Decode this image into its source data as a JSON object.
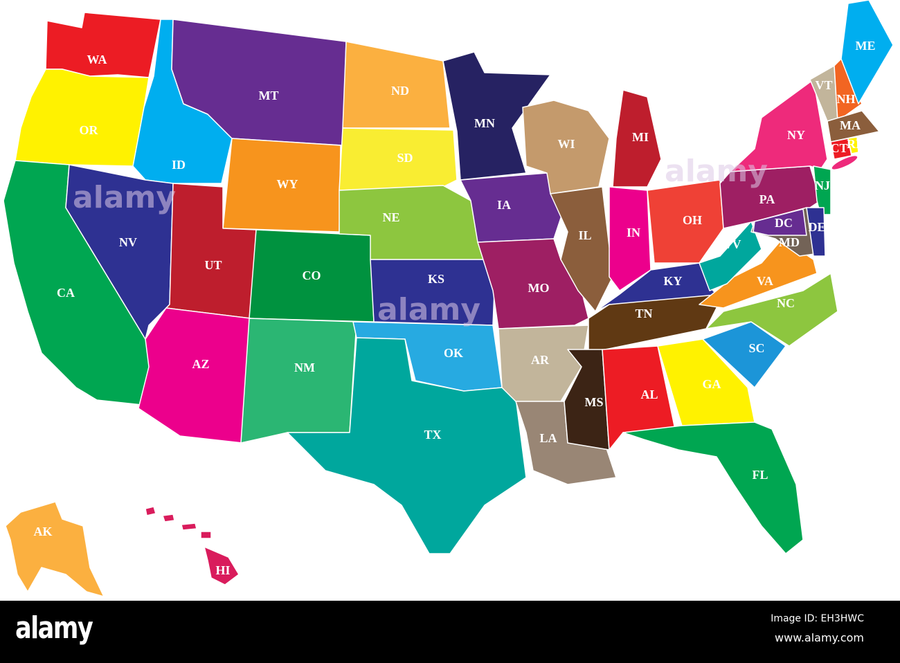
{
  "map": {
    "states": [
      {
        "code": "WA",
        "color": "#ec1c24"
      },
      {
        "code": "OR",
        "color": "#fff200"
      },
      {
        "code": "CA",
        "color": "#00a651"
      },
      {
        "code": "ID",
        "color": "#00aeef"
      },
      {
        "code": "NV",
        "color": "#2e3192"
      },
      {
        "code": "MT",
        "color": "#662d91"
      },
      {
        "code": "WY",
        "color": "#f7941d"
      },
      {
        "code": "UT",
        "color": "#be1e2d"
      },
      {
        "code": "CO",
        "color": "#00923f"
      },
      {
        "code": "AZ",
        "color": "#ec008c"
      },
      {
        "code": "NM",
        "color": "#2bb673"
      },
      {
        "code": "ND",
        "color": "#fbb040"
      },
      {
        "code": "SD",
        "color": "#f9ed32"
      },
      {
        "code": "NE",
        "color": "#8dc63f"
      },
      {
        "code": "KS",
        "color": "#2e3192"
      },
      {
        "code": "OK",
        "color": "#27aae1"
      },
      {
        "code": "TX",
        "color": "#00a79d"
      },
      {
        "code": "MN",
        "color": "#262262"
      },
      {
        "code": "IA",
        "color": "#662d91"
      },
      {
        "code": "MO",
        "color": "#9e1f63"
      },
      {
        "code": "AR",
        "color": "#c2b59b"
      },
      {
        "code": "LA",
        "color": "#998675"
      },
      {
        "code": "WI",
        "color": "#c49a6c"
      },
      {
        "code": "IL",
        "color": "#8b5e3c"
      },
      {
        "code": "MI",
        "color": "#be1e2d"
      },
      {
        "code": "IN",
        "color": "#ec008c"
      },
      {
        "code": "OH",
        "color": "#ef4136"
      },
      {
        "code": "KY",
        "color": "#2e3192"
      },
      {
        "code": "TN",
        "color": "#603913"
      },
      {
        "code": "MS",
        "color": "#3c2415"
      },
      {
        "code": "AL",
        "color": "#ed1c24"
      },
      {
        "code": "GA",
        "color": "#fff200"
      },
      {
        "code": "FL",
        "color": "#00a651"
      },
      {
        "code": "SC",
        "color": "#1c95d8"
      },
      {
        "code": "NC",
        "color": "#8dc63f"
      },
      {
        "code": "VA",
        "color": "#f7941d"
      },
      {
        "code": "WV",
        "color": "#00a79d"
      },
      {
        "code": "PA",
        "color": "#9e1f63"
      },
      {
        "code": "NY",
        "color": "#ee2a7b"
      },
      {
        "code": "NJ",
        "color": "#00a651"
      },
      {
        "code": "MD",
        "color": "#736357"
      },
      {
        "code": "DC",
        "color": "#662d91"
      },
      {
        "code": "DE",
        "color": "#2e3192"
      },
      {
        "code": "VT",
        "color": "#c2b59b"
      },
      {
        "code": "NH",
        "color": "#f26522"
      },
      {
        "code": "ME",
        "color": "#00aeef"
      },
      {
        "code": "MA",
        "color": "#8b5e3c"
      },
      {
        "code": "CT",
        "color": "#ed1c24"
      },
      {
        "code": "RI",
        "color": "#fff200"
      },
      {
        "code": "AK",
        "color": "#fbb040"
      },
      {
        "code": "HI",
        "color": "#d91c5c"
      }
    ],
    "watermarks": [
      "alamy",
      "alamy",
      "alamy"
    ]
  },
  "footer": {
    "logo": "alamy",
    "image_id": "Image ID: EH3HWC",
    "url": "www.alamy.com"
  }
}
